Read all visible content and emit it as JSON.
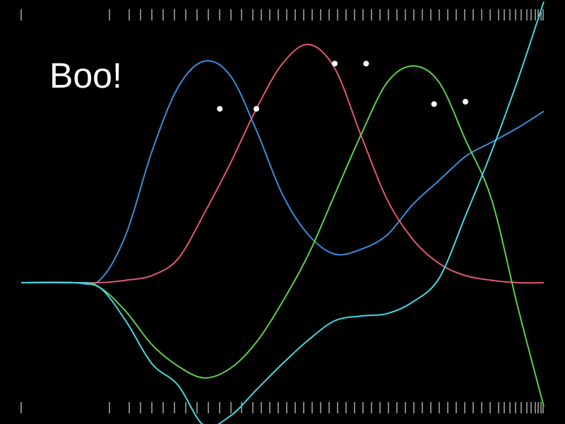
{
  "chart_data": {
    "type": "line",
    "title": "Boo!",
    "xlabel": "",
    "ylabel": "",
    "x_range": [
      0,
      1
    ],
    "y_range": [
      -1,
      1
    ],
    "grid": false,
    "legend": "none",
    "colors": {
      "background": "#000000",
      "ticks": "#ffffff",
      "eyes": "#ffffff"
    },
    "series": [
      {
        "color": "#3a8fd8",
        "points": [
          [
            0,
            0
          ],
          [
            0.05,
            0
          ],
          [
            0.1,
            0
          ],
          [
            0.15,
            0.01
          ],
          [
            0.2,
            0.2
          ],
          [
            0.25,
            0.55
          ],
          [
            0.3,
            0.82
          ],
          [
            0.35,
            0.93
          ],
          [
            0.4,
            0.87
          ],
          [
            0.45,
            0.64
          ],
          [
            0.5,
            0.37
          ],
          [
            0.55,
            0.2
          ],
          [
            0.6,
            0.12
          ],
          [
            0.65,
            0.14
          ],
          [
            0.7,
            0.2
          ],
          [
            0.75,
            0.33
          ],
          [
            0.8,
            0.43
          ],
          [
            0.85,
            0.53
          ],
          [
            0.9,
            0.59
          ],
          [
            0.95,
            0.65
          ],
          [
            1.0,
            0.72
          ]
        ],
        "eyes": [
          [
            0.38,
            0.73
          ],
          [
            0.45,
            0.73
          ]
        ]
      },
      {
        "color": "#e0596f",
        "points": [
          [
            0,
            0
          ],
          [
            0.1,
            0
          ],
          [
            0.15,
            0
          ],
          [
            0.2,
            0.01
          ],
          [
            0.25,
            0.03
          ],
          [
            0.3,
            0.1
          ],
          [
            0.35,
            0.29
          ],
          [
            0.4,
            0.5
          ],
          [
            0.45,
            0.73
          ],
          [
            0.5,
            0.92
          ],
          [
            0.55,
            1.0
          ],
          [
            0.6,
            0.9
          ],
          [
            0.65,
            0.62
          ],
          [
            0.7,
            0.35
          ],
          [
            0.75,
            0.18
          ],
          [
            0.8,
            0.08
          ],
          [
            0.85,
            0.03
          ],
          [
            0.9,
            0.01
          ],
          [
            0.95,
            0.0
          ],
          [
            1.0,
            0.0
          ]
        ],
        "eyes": [
          [
            0.6,
            0.92
          ],
          [
            0.66,
            0.92
          ]
        ]
      },
      {
        "color": "#5ecf4a",
        "points": [
          [
            0,
            0
          ],
          [
            0.1,
            0
          ],
          [
            0.15,
            -0.02
          ],
          [
            0.2,
            -0.12
          ],
          [
            0.25,
            -0.26
          ],
          [
            0.3,
            -0.35
          ],
          [
            0.35,
            -0.4
          ],
          [
            0.4,
            -0.36
          ],
          [
            0.45,
            -0.25
          ],
          [
            0.5,
            -0.08
          ],
          [
            0.55,
            0.12
          ],
          [
            0.6,
            0.37
          ],
          [
            0.65,
            0.62
          ],
          [
            0.7,
            0.84
          ],
          [
            0.75,
            0.91
          ],
          [
            0.8,
            0.84
          ],
          [
            0.85,
            0.6
          ],
          [
            0.9,
            0.35
          ],
          [
            0.95,
            -0.1
          ],
          [
            1.0,
            -0.52
          ]
        ],
        "eyes": [
          [
            0.79,
            0.75
          ],
          [
            0.85,
            0.76
          ]
        ]
      },
      {
        "color": "#45d8e0",
        "points": [
          [
            0,
            0
          ],
          [
            0.1,
            0
          ],
          [
            0.15,
            -0.02
          ],
          [
            0.2,
            -0.16
          ],
          [
            0.25,
            -0.34
          ],
          [
            0.3,
            -0.43
          ],
          [
            0.35,
            -0.6
          ],
          [
            0.4,
            -0.56
          ],
          [
            0.45,
            -0.45
          ],
          [
            0.5,
            -0.34
          ],
          [
            0.55,
            -0.24
          ],
          [
            0.6,
            -0.16
          ],
          [
            0.65,
            -0.14
          ],
          [
            0.7,
            -0.13
          ],
          [
            0.75,
            -0.08
          ],
          [
            0.8,
            0.02
          ],
          [
            0.85,
            0.28
          ],
          [
            0.9,
            0.55
          ],
          [
            0.95,
            0.85
          ],
          [
            1.0,
            1.18
          ]
        ]
      }
    ]
  }
}
